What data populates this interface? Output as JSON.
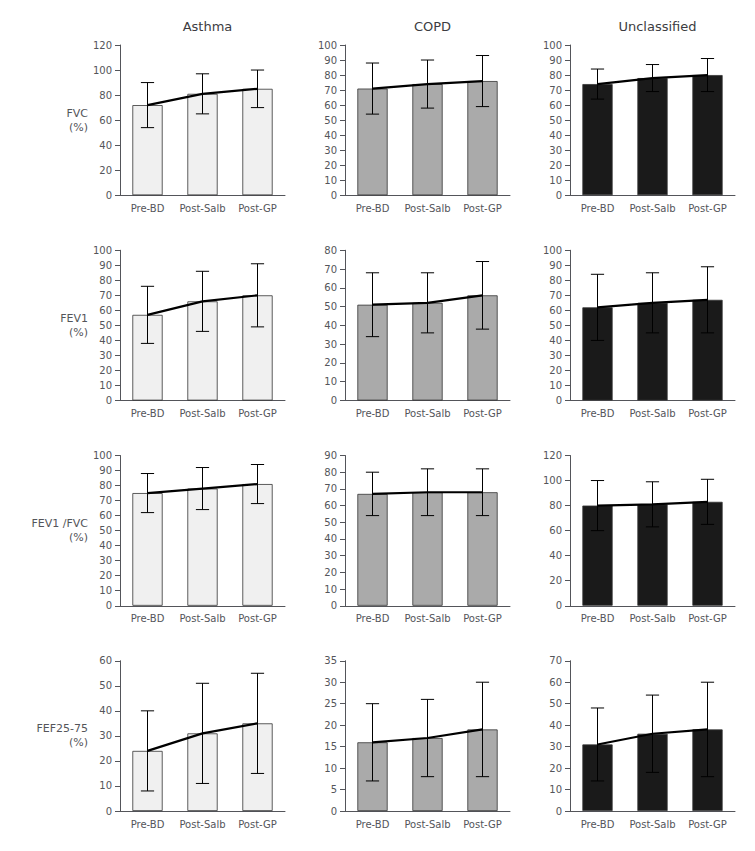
{
  "chart_data": [
    {
      "type": "bar",
      "title": "Asthma",
      "ylabel": "FVC\n(%)",
      "categories": [
        "Pre-BD",
        "Post-Salb",
        "Post-GP"
      ],
      "series": [
        {
          "type": "bar",
          "color": "#f0f0f0",
          "values": [
            72,
            81,
            85
          ],
          "errors": [
            18,
            16,
            15
          ]
        },
        {
          "type": "line",
          "color": "#000000",
          "values": [
            72,
            81,
            85
          ]
        }
      ],
      "ylim": [
        0,
        120
      ],
      "yticks": [
        0,
        20,
        40,
        60,
        80,
        100,
        120
      ],
      "grid": false
    },
    {
      "type": "bar",
      "title": "COPD",
      "categories": [
        "Pre-BD",
        "Post-Salb",
        "Post-GP"
      ],
      "series": [
        {
          "type": "bar",
          "color": "#aaaaaa",
          "values": [
            71,
            74,
            76
          ],
          "errors": [
            17,
            16,
            17
          ]
        },
        {
          "type": "line",
          "color": "#000000",
          "values": [
            71,
            74,
            76
          ]
        }
      ],
      "ylim": [
        0,
        100
      ],
      "yticks": [
        0,
        10,
        20,
        30,
        40,
        50,
        60,
        70,
        80,
        90,
        100
      ],
      "grid": false
    },
    {
      "type": "bar",
      "title": "Unclassified",
      "categories": [
        "Pre-BD",
        "Post-Salb",
        "Post-GP"
      ],
      "series": [
        {
          "type": "bar",
          "color": "#1a1a1a",
          "values": [
            74,
            78,
            80
          ],
          "errors": [
            10,
            9,
            11
          ]
        },
        {
          "type": "line",
          "color": "#000000",
          "values": [
            74,
            78,
            80
          ]
        }
      ],
      "ylim": [
        0,
        100
      ],
      "yticks": [
        0,
        10,
        20,
        30,
        40,
        50,
        60,
        70,
        80,
        90,
        100
      ],
      "grid": false
    },
    {
      "type": "bar",
      "ylabel": "FEV1\n(%)",
      "categories": [
        "Pre-BD",
        "Post-Salb",
        "Post-GP"
      ],
      "series": [
        {
          "type": "bar",
          "color": "#f0f0f0",
          "values": [
            57,
            66,
            70
          ],
          "errors": [
            19,
            20,
            21
          ]
        },
        {
          "type": "line",
          "color": "#000000",
          "values": [
            57,
            66,
            70
          ]
        }
      ],
      "ylim": [
        0,
        100
      ],
      "yticks": [
        0,
        10,
        20,
        30,
        40,
        50,
        60,
        70,
        80,
        90,
        100
      ],
      "grid": false
    },
    {
      "type": "bar",
      "categories": [
        "Pre-BD",
        "Post-Salb",
        "Post-GP"
      ],
      "series": [
        {
          "type": "bar",
          "color": "#aaaaaa",
          "values": [
            51,
            52,
            56
          ],
          "errors": [
            17,
            16,
            18
          ]
        },
        {
          "type": "line",
          "color": "#000000",
          "values": [
            51,
            52,
            56
          ]
        }
      ],
      "ylim": [
        0,
        80
      ],
      "yticks": [
        0,
        10,
        20,
        30,
        40,
        50,
        60,
        70,
        80
      ],
      "grid": false
    },
    {
      "type": "bar",
      "categories": [
        "Pre-BD",
        "Post-Salb",
        "Post-GP"
      ],
      "series": [
        {
          "type": "bar",
          "color": "#1a1a1a",
          "values": [
            62,
            65,
            67
          ],
          "errors": [
            22,
            20,
            22
          ]
        },
        {
          "type": "line",
          "color": "#000000",
          "values": [
            62,
            65,
            67
          ]
        }
      ],
      "ylim": [
        0,
        100
      ],
      "yticks": [
        0,
        10,
        20,
        30,
        40,
        50,
        60,
        70,
        80,
        90,
        100
      ],
      "grid": false
    },
    {
      "type": "bar",
      "ylabel": "FEV1 /FVC\n(%)",
      "categories": [
        "Pre-BD",
        "Post-Salb",
        "Post-GP"
      ],
      "series": [
        {
          "type": "bar",
          "color": "#f0f0f0",
          "values": [
            75,
            78,
            81
          ],
          "errors": [
            13,
            14,
            13
          ]
        },
        {
          "type": "line",
          "color": "#000000",
          "values": [
            75,
            78,
            81
          ]
        }
      ],
      "ylim": [
        0,
        100
      ],
      "yticks": [
        0,
        10,
        20,
        30,
        40,
        50,
        60,
        70,
        80,
        90,
        100
      ],
      "grid": false
    },
    {
      "type": "bar",
      "categories": [
        "Pre-BD",
        "Post-Salb",
        "Post-GP"
      ],
      "series": [
        {
          "type": "bar",
          "color": "#aaaaaa",
          "values": [
            67,
            68,
            68
          ],
          "errors": [
            13,
            14,
            14
          ]
        },
        {
          "type": "line",
          "color": "#000000",
          "values": [
            67,
            68,
            68
          ]
        }
      ],
      "ylim": [
        0,
        90
      ],
      "yticks": [
        0,
        10,
        20,
        30,
        40,
        50,
        60,
        70,
        80,
        90
      ],
      "grid": false
    },
    {
      "type": "bar",
      "categories": [
        "Pre-BD",
        "Post-Salb",
        "Post-GP"
      ],
      "series": [
        {
          "type": "bar",
          "color": "#1a1a1a",
          "values": [
            80,
            81,
            83
          ],
          "errors": [
            20,
            18,
            18
          ]
        },
        {
          "type": "line",
          "color": "#000000",
          "values": [
            80,
            81,
            83
          ]
        }
      ],
      "ylim": [
        0,
        120
      ],
      "yticks": [
        0,
        20,
        40,
        60,
        80,
        100,
        120
      ],
      "grid": false
    },
    {
      "type": "bar",
      "ylabel": "FEF25-75\n(%)",
      "categories": [
        "Pre-BD",
        "Post-Salb",
        "Post-GP"
      ],
      "series": [
        {
          "type": "bar",
          "color": "#f0f0f0",
          "values": [
            24,
            31,
            35
          ],
          "errors": [
            16,
            20,
            20
          ]
        },
        {
          "type": "line",
          "color": "#000000",
          "values": [
            24,
            31,
            35
          ]
        }
      ],
      "ylim": [
        0,
        60
      ],
      "yticks": [
        0,
        10,
        20,
        30,
        40,
        50,
        60
      ],
      "grid": false
    },
    {
      "type": "bar",
      "categories": [
        "Pre-BD",
        "Post-Salb",
        "Post-GP"
      ],
      "series": [
        {
          "type": "bar",
          "color": "#aaaaaa",
          "values": [
            16,
            17,
            19
          ],
          "errors": [
            9,
            9,
            11
          ]
        },
        {
          "type": "line",
          "color": "#000000",
          "values": [
            16,
            17,
            19
          ]
        }
      ],
      "ylim": [
        0,
        35
      ],
      "yticks": [
        0,
        5,
        10,
        15,
        20,
        25,
        30,
        35
      ],
      "grid": false
    },
    {
      "type": "bar",
      "categories": [
        "Pre-BD",
        "Post-Salb",
        "Post-GP"
      ],
      "series": [
        {
          "type": "bar",
          "color": "#1a1a1a",
          "values": [
            31,
            36,
            38
          ],
          "errors": [
            17,
            18,
            22
          ]
        },
        {
          "type": "line",
          "color": "#000000",
          "values": [
            31,
            36,
            38
          ]
        }
      ],
      "ylim": [
        0,
        70
      ],
      "yticks": [
        0,
        10,
        20,
        30,
        40,
        50,
        60,
        70
      ],
      "grid": false
    }
  ]
}
